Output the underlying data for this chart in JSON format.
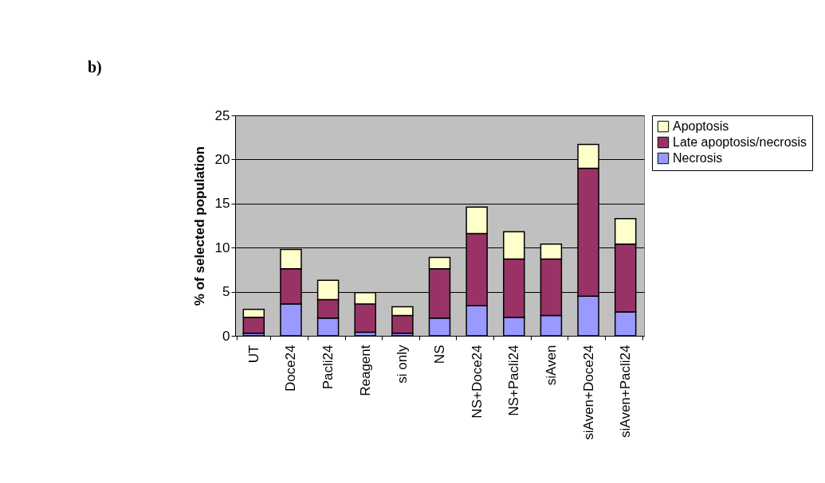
{
  "chart_data": {
    "type": "bar",
    "stacked": true,
    "ylabel": "% of selected population",
    "annotations": [
      "b)"
    ],
    "categories": [
      "UT",
      "Doce24",
      "Pacli24",
      "Reagent",
      "si only",
      "NS",
      "NS+Doce24",
      "NS+Pacli24",
      "siAven",
      "siAven+Doce24",
      "siAven+Pacli24"
    ],
    "series": [
      {
        "name": "Necrosis",
        "color": "#9999ff",
        "values": [
          0.3,
          3.6,
          2.0,
          0.4,
          0.3,
          2.0,
          3.4,
          2.1,
          2.3,
          4.5,
          2.7
        ]
      },
      {
        "name": "Late apoptosis/necrosis",
        "color": "#993366",
        "values": [
          1.8,
          4.0,
          2.1,
          3.2,
          2.0,
          5.6,
          8.2,
          6.6,
          6.4,
          14.5,
          7.7
        ]
      },
      {
        "name": "Apoptosis",
        "color": "#ffffcc",
        "values": [
          0.9,
          2.2,
          2.2,
          1.3,
          1.0,
          1.3,
          3.0,
          3.1,
          1.7,
          2.7,
          2.9
        ]
      }
    ],
    "ylim": [
      0,
      25
    ],
    "yticks": [
      0,
      5,
      10,
      15,
      20,
      25
    ],
    "grid": "y",
    "legend": "right"
  }
}
